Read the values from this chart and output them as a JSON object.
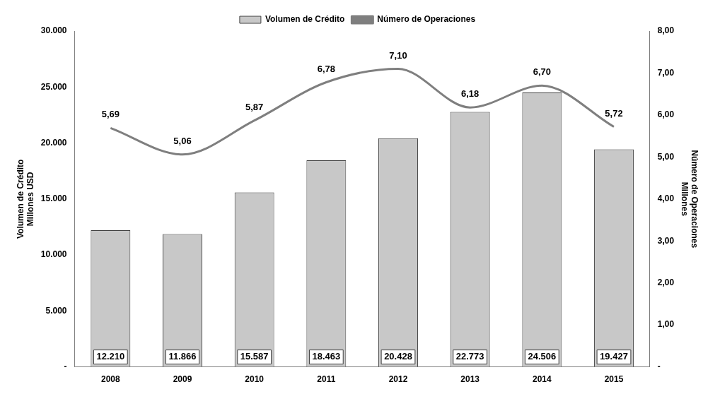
{
  "chart_data": {
    "type": "bar",
    "categories": [
      "2008",
      "2009",
      "2010",
      "2011",
      "2012",
      "2013",
      "2014",
      "2015"
    ],
    "ylabel": "Volumen de Crédito\nMillones USD",
    "y2label": "Número de Operaciones\nMillones",
    "series": [
      {
        "name": "Volumen de Crédito",
        "color": "#c8c8c8",
        "values": [
          12210,
          11866,
          15587,
          18463,
          20428,
          22773,
          24506,
          19427
        ],
        "value_labels": [
          "12.210",
          "11.866",
          "15.587",
          "18.463",
          "20.428",
          "22.773",
          "24.506",
          "19.427"
        ]
      },
      {
        "name": "Número de Operaciones",
        "type": "line",
        "axis": "y2",
        "color": "#7f7f7f",
        "values": [
          5.69,
          5.06,
          5.87,
          6.78,
          7.1,
          6.18,
          6.7,
          5.72
        ],
        "value_labels": [
          "5,69",
          "5,06",
          "5,87",
          "6,78",
          "7,10",
          "6,18",
          "6,70",
          "5,72"
        ]
      }
    ],
    "ylim": [
      0,
      30000
    ],
    "yticks": [
      {
        "value": 0,
        "label": "-"
      },
      {
        "value": 5000,
        "label": "5.000"
      },
      {
        "value": 10000,
        "label": "10.000"
      },
      {
        "value": 15000,
        "label": "15.000"
      },
      {
        "value": 20000,
        "label": "20.000"
      },
      {
        "value": 25000,
        "label": "25.000"
      },
      {
        "value": 30000,
        "label": "30.000"
      }
    ],
    "y2lim": [
      0,
      8
    ],
    "y2ticks": [
      {
        "value": 0,
        "label": "-"
      },
      {
        "value": 1,
        "label": "1,00"
      },
      {
        "value": 2,
        "label": "2,00"
      },
      {
        "value": 3,
        "label": "3,00"
      },
      {
        "value": 4,
        "label": "4,00"
      },
      {
        "value": 5,
        "label": "5,00"
      },
      {
        "value": 6,
        "label": "6,00"
      },
      {
        "value": 7,
        "label": "7,00"
      },
      {
        "value": 8,
        "label": "8,00"
      }
    ],
    "legend": "top",
    "grid": false,
    "marker": "none"
  }
}
